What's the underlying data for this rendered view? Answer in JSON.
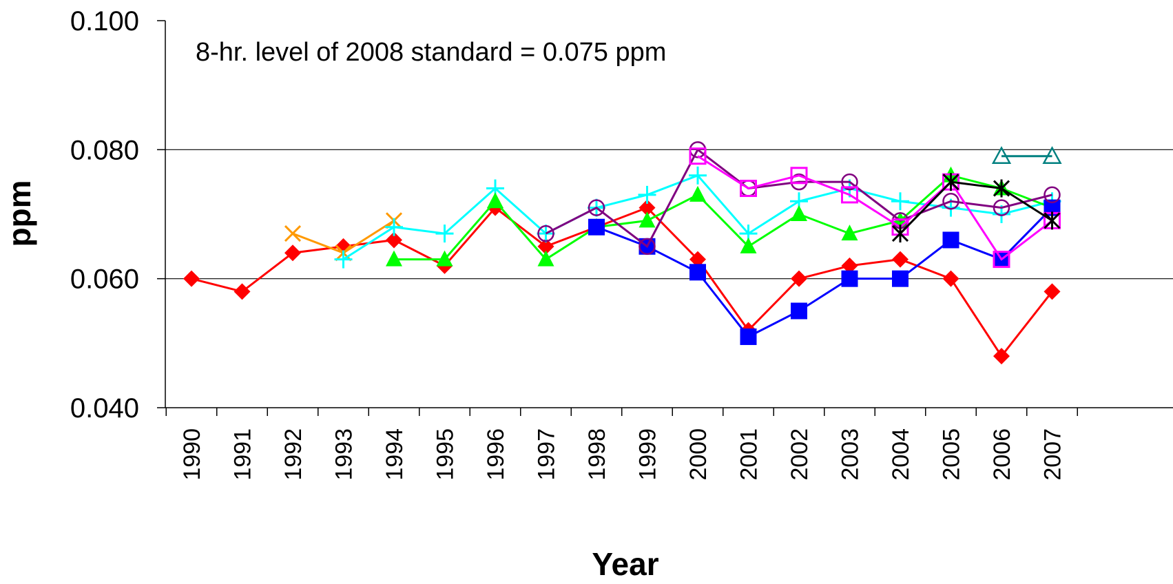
{
  "chart_data": {
    "type": "line",
    "title": "",
    "xlabel": "Year",
    "ylabel": "ppm",
    "annotation": "8-hr. level of 2008 standard = 0.075 ppm",
    "ylim": [
      0.04,
      0.1
    ],
    "yticks": [
      "0.040",
      "0.060",
      "0.080",
      "0.100"
    ],
    "categories": [
      "1990",
      "1991",
      "1992",
      "1993",
      "1994",
      "1995",
      "1996",
      "1997",
      "1998",
      "1999",
      "2000",
      "2001",
      "2002",
      "2003",
      "2004",
      "2005",
      "2006",
      "2007"
    ],
    "grid": true,
    "legend": "none",
    "series": [
      {
        "color": "#ff0000",
        "marker": "diamond",
        "values": [
          0.06,
          0.058,
          0.064,
          0.065,
          0.066,
          0.062,
          0.071,
          0.065,
          0.068,
          0.071,
          0.063,
          0.052,
          0.06,
          0.062,
          0.063,
          0.06,
          0.048,
          0.058
        ]
      },
      {
        "color": "#ff9900",
        "marker": "x",
        "values": [
          null,
          null,
          0.067,
          0.064,
          0.069,
          null,
          null,
          null,
          null,
          null,
          null,
          null,
          null,
          null,
          null,
          null,
          null,
          null
        ]
      },
      {
        "color": "#00ffff",
        "marker": "plus",
        "values": [
          null,
          null,
          null,
          0.063,
          0.068,
          0.067,
          0.074,
          0.067,
          0.071,
          0.073,
          0.076,
          0.067,
          0.072,
          0.074,
          0.072,
          0.071,
          0.07,
          0.072
        ]
      },
      {
        "color": "#00ff00",
        "marker": "triangle",
        "values": [
          null,
          null,
          null,
          null,
          0.063,
          0.063,
          0.072,
          0.063,
          0.068,
          0.069,
          0.073,
          0.065,
          0.07,
          0.067,
          0.069,
          0.076,
          0.074,
          0.071
        ]
      },
      {
        "color": "#0000ff",
        "marker": "square",
        "values": [
          null,
          null,
          null,
          null,
          null,
          null,
          null,
          null,
          0.068,
          0.065,
          0.061,
          0.051,
          0.055,
          0.06,
          0.06,
          0.066,
          0.063,
          0.071
        ]
      },
      {
        "color": "#800080",
        "marker": "circle",
        "values": [
          null,
          null,
          null,
          null,
          null,
          null,
          null,
          0.067,
          0.071,
          0.065,
          0.08,
          0.074,
          0.075,
          0.075,
          0.069,
          0.072,
          0.071,
          0.073
        ]
      },
      {
        "color": "#ff00ff",
        "marker": "square-open",
        "values": [
          null,
          null,
          null,
          null,
          null,
          null,
          null,
          null,
          null,
          null,
          0.079,
          0.074,
          0.076,
          0.073,
          0.068,
          0.075,
          0.063,
          0.069
        ]
      },
      {
        "color": "#000000",
        "marker": "star",
        "values": [
          null,
          null,
          null,
          null,
          null,
          null,
          null,
          null,
          null,
          null,
          null,
          null,
          null,
          null,
          0.067,
          0.075,
          0.074,
          0.069
        ]
      },
      {
        "color": "#008080",
        "marker": "triangle-open",
        "values": [
          null,
          null,
          null,
          null,
          null,
          null,
          null,
          null,
          null,
          null,
          null,
          null,
          null,
          null,
          null,
          null,
          0.079,
          0.079
        ]
      }
    ]
  }
}
